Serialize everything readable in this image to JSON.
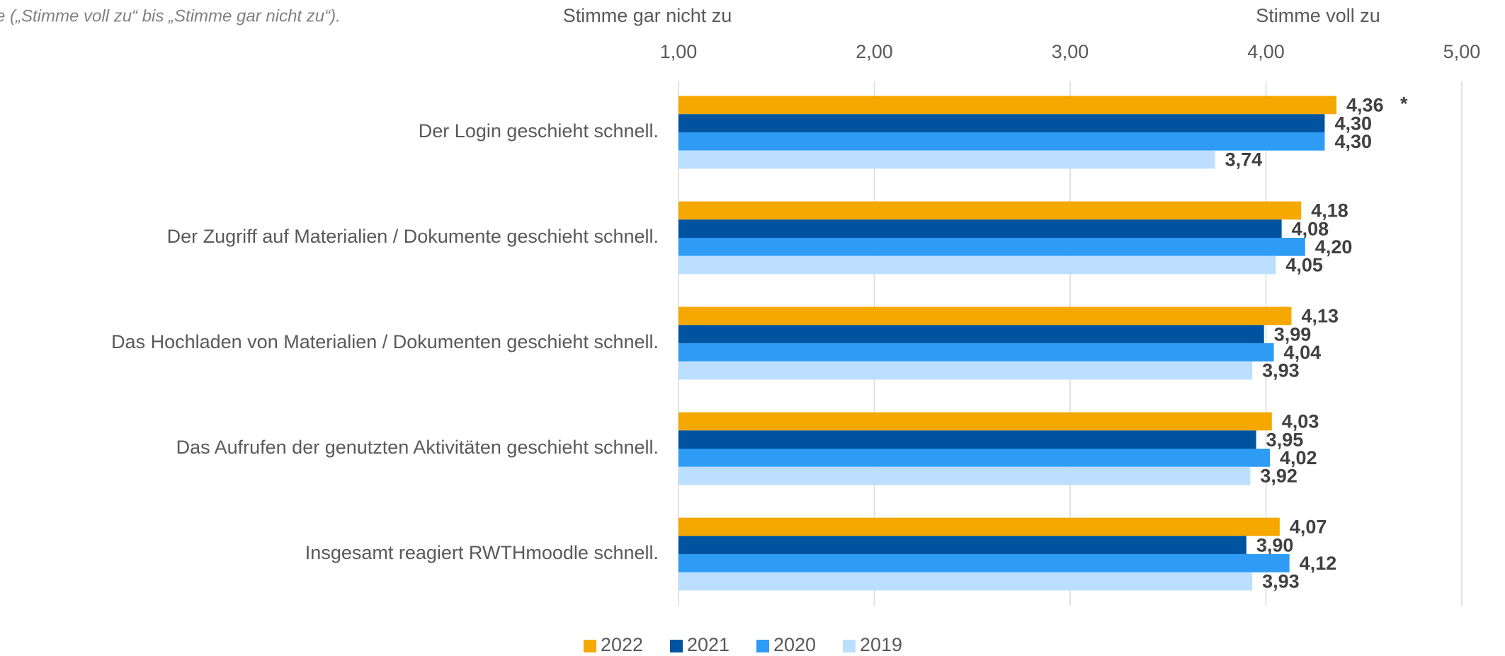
{
  "chart_data": {
    "type": "bar",
    "orientation": "horizontal",
    "subtitle": "e („Stimme voll zu“ bis „Stimme gar nicht zu“).",
    "axis_left_label": "Stimme gar nicht zu",
    "axis_right_label": "Stimme voll zu",
    "categories": [
      "Der Login geschieht schnell.",
      "Der Zugriff auf Materialien / Dokumente geschieht schnell.",
      "Das Hochladen von Materialien / Dokumenten geschieht schnell.",
      "Das Aufrufen der genutzten Aktivitäten geschieht schnell.",
      "Insgesamt reagiert RWTHmoodle schnell."
    ],
    "series": [
      {
        "name": "2022",
        "color": "#f5a800",
        "values": [
          4.36,
          4.18,
          4.13,
          4.03,
          4.07
        ],
        "value_labels": [
          "4,36",
          "4,18",
          "4,13",
          "4,03",
          "4,07"
        ]
      },
      {
        "name": "2021",
        "color": "#00549f",
        "values": [
          4.3,
          4.08,
          3.99,
          3.95,
          3.9
        ],
        "value_labels": [
          "4,30",
          "4,08",
          "3,99",
          "3,95",
          "3,90"
        ]
      },
      {
        "name": "2020",
        "color": "#2e9cf4",
        "values": [
          4.3,
          4.2,
          4.04,
          4.02,
          4.12
        ],
        "value_labels": [
          "4,30",
          "4,20",
          "4,04",
          "4,02",
          "4,12"
        ]
      },
      {
        "name": "2019",
        "color": "#bddfff",
        "values": [
          3.74,
          4.05,
          3.93,
          3.92,
          3.93
        ],
        "value_labels": [
          "3,74",
          "4,05",
          "3,93",
          "3,92",
          "3,93"
        ]
      }
    ],
    "annotation": "*",
    "xlim": [
      1,
      5
    ],
    "xticks": [
      {
        "value": 1,
        "label": "1,00"
      },
      {
        "value": 2,
        "label": "2,00"
      },
      {
        "value": 3,
        "label": "3,00"
      },
      {
        "value": 4,
        "label": "4,00"
      },
      {
        "value": 5,
        "label": "5,00"
      }
    ],
    "grid": true,
    "legend": "bottom"
  }
}
